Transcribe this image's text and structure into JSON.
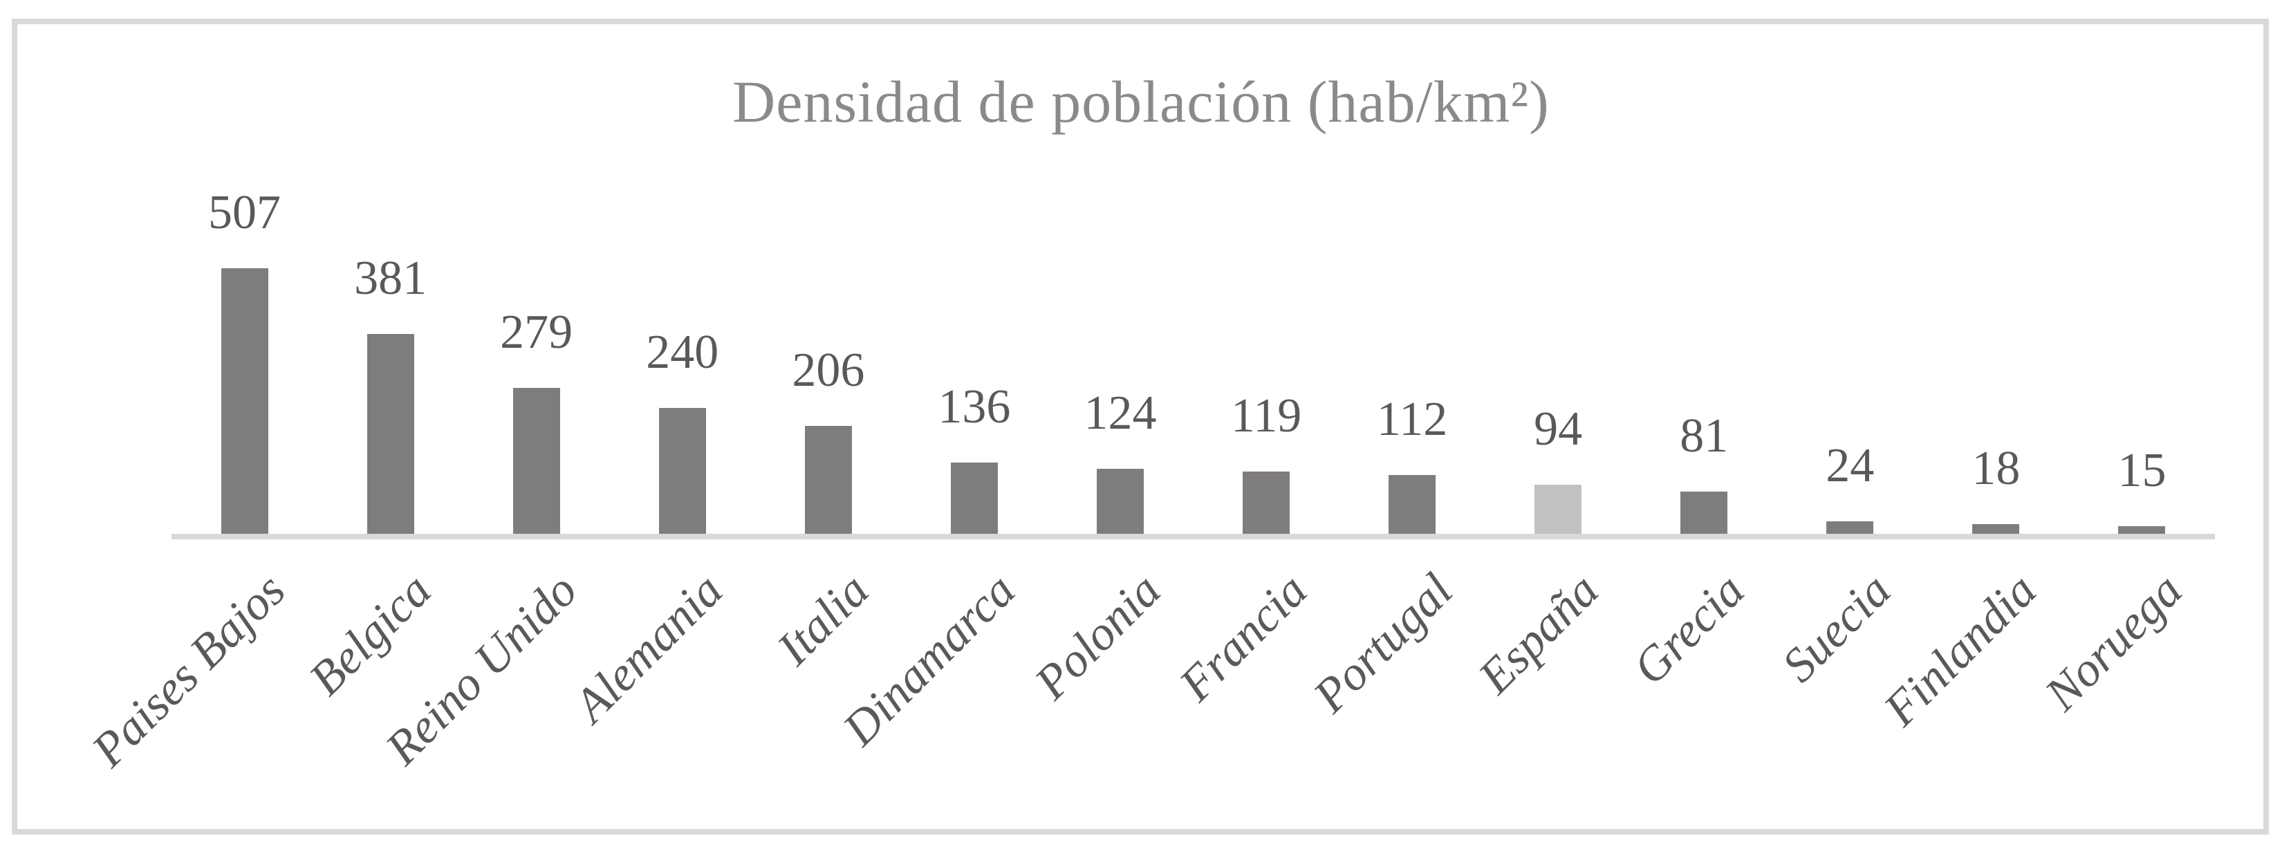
{
  "chart_data": {
    "type": "bar",
    "title": "Densidad de población (hab/km²)",
    "categories": [
      "Paises Bajos",
      "Belgica",
      "Reino Unido",
      "Alemania",
      "Italia",
      "Dinamarca",
      "Polonia",
      "Francia",
      "Portugal",
      "España",
      "Grecia",
      "Suecia",
      "Finlandia",
      "Noruega"
    ],
    "values": [
      507,
      381,
      279,
      240,
      206,
      136,
      124,
      119,
      112,
      94,
      81,
      24,
      18,
      15
    ],
    "data_labels": [
      "507",
      "381",
      "279",
      "240",
      "206",
      "136",
      "124",
      "119",
      "112",
      "94",
      "81",
      "24",
      "18",
      "15"
    ],
    "highlight_category": "España",
    "ylabel": "",
    "xlabel": "",
    "legend": "none",
    "grid": "off",
    "colors": {
      "bar": "#7f7c7c",
      "highlight_bar": "#c1c1c1",
      "axis_line": "#d9d9d9",
      "chart_border": "#d9d9d9",
      "title_text": "#8a8a8a",
      "label_text": "#595959",
      "background": "#ffffff"
    }
  }
}
